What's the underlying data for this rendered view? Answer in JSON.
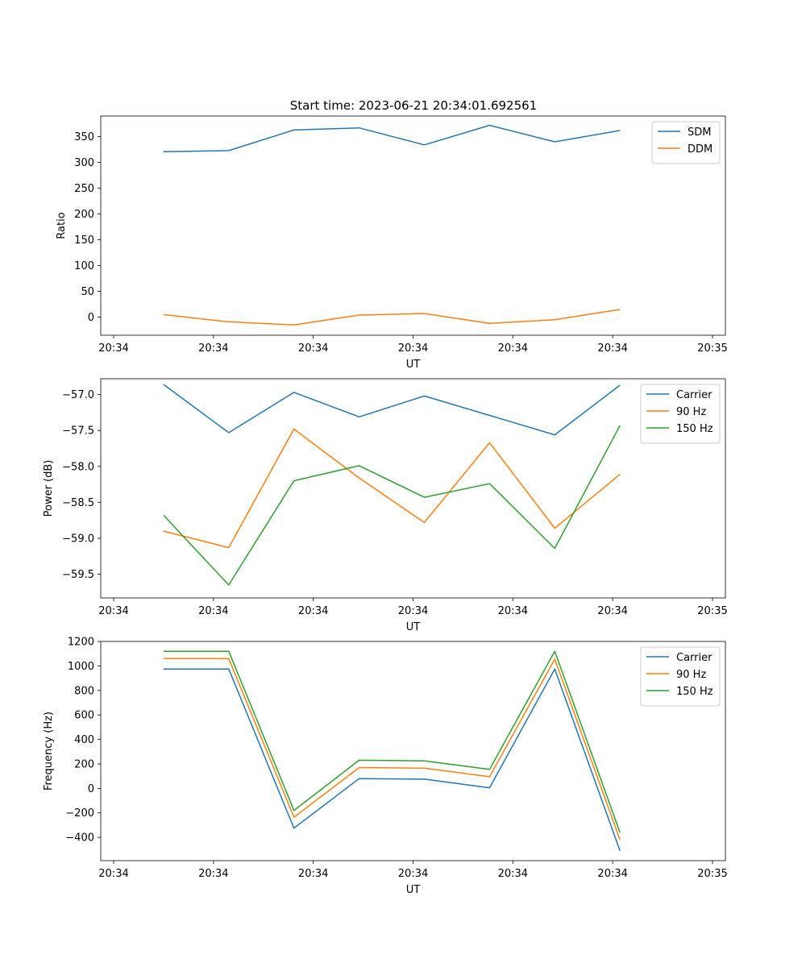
{
  "figure": {
    "title": "Start time: 2023-06-21 20:34:01.692561"
  },
  "chart_data": [
    {
      "type": "line",
      "title": "Start time: 2023-06-21 20:34:01.692561",
      "xlabel": "UT",
      "ylabel": "Ratio",
      "xlim": [
        0,
        9
      ],
      "ylim": [
        -35,
        390
      ],
      "x_ticks": [
        {
          "pos": 0,
          "label": "20:34"
        },
        {
          "pos": 1.5,
          "label": "20:34"
        },
        {
          "pos": 3,
          "label": "20:34"
        },
        {
          "pos": 4.5,
          "label": "20:34"
        },
        {
          "pos": 6,
          "label": "20:34"
        },
        {
          "pos": 7.5,
          "label": "20:34"
        },
        {
          "pos": 9,
          "label": "20:35"
        }
      ],
      "y_ticks": [
        0,
        50,
        100,
        150,
        200,
        250,
        300,
        350
      ],
      "legend": "top-right",
      "grid": false,
      "series": [
        {
          "name": "SDM",
          "color": "#1f77b4",
          "x": [
            0.75,
            1.73,
            2.71,
            3.69,
            4.67,
            5.65,
            6.63,
            7.61
          ],
          "values": [
            321,
            323,
            363,
            367,
            334,
            372,
            340,
            362
          ]
        },
        {
          "name": "DDM",
          "color": "#ff7f0e",
          "x": [
            0.75,
            1.73,
            2.71,
            3.69,
            4.67,
            5.65,
            6.63,
            7.61
          ],
          "values": [
            5,
            -9,
            -15,
            4,
            7,
            -12,
            -5,
            15
          ]
        }
      ]
    },
    {
      "type": "line",
      "title": "",
      "xlabel": "UT",
      "ylabel": "Power (dB)",
      "xlim": [
        0,
        9
      ],
      "ylim": [
        -59.83,
        -56.78
      ],
      "x_ticks": [
        {
          "pos": 0,
          "label": "20:34"
        },
        {
          "pos": 1.5,
          "label": "20:34"
        },
        {
          "pos": 3,
          "label": "20:34"
        },
        {
          "pos": 4.5,
          "label": "20:34"
        },
        {
          "pos": 6,
          "label": "20:34"
        },
        {
          "pos": 7.5,
          "label": "20:34"
        },
        {
          "pos": 9,
          "label": "20:35"
        }
      ],
      "y_ticks": [
        -59.5,
        -59.0,
        -58.5,
        -58.0,
        -57.5,
        -57.0
      ],
      "y_tick_labels": [
        "−59.5",
        "−59.0",
        "−58.5",
        "−58.0",
        "−57.5",
        "−57.0"
      ],
      "legend": "top-right",
      "grid": false,
      "series": [
        {
          "name": "Carrier",
          "color": "#1f77b4",
          "x": [
            0.75,
            1.73,
            2.71,
            3.69,
            4.67,
            5.65,
            6.63,
            7.61
          ],
          "values": [
            -56.86,
            -57.53,
            -56.97,
            -57.31,
            -57.02,
            -57.29,
            -57.56,
            -56.87
          ]
        },
        {
          "name": "90 Hz",
          "color": "#ff7f0e",
          "x": [
            0.75,
            1.73,
            2.71,
            3.69,
            4.67,
            5.65,
            6.63,
            7.61
          ],
          "values": [
            -58.9,
            -59.13,
            -57.48,
            -58.16,
            -58.78,
            -57.67,
            -58.86,
            -58.11
          ]
        },
        {
          "name": "150 Hz",
          "color": "#2ca02c",
          "x": [
            0.75,
            1.73,
            2.71,
            3.69,
            4.67,
            5.65,
            6.63,
            7.61
          ],
          "values": [
            -58.68,
            -59.65,
            -58.2,
            -57.99,
            -58.43,
            -58.24,
            -59.14,
            -57.43
          ]
        }
      ]
    },
    {
      "type": "line",
      "title": "",
      "xlabel": "UT",
      "ylabel": "Frequency (Hz)",
      "xlim": [
        0,
        9
      ],
      "ylim": [
        -590,
        1200
      ],
      "x_ticks": [
        {
          "pos": 0,
          "label": "20:34"
        },
        {
          "pos": 1.5,
          "label": "20:34"
        },
        {
          "pos": 3,
          "label": "20:34"
        },
        {
          "pos": 4.5,
          "label": "20:34"
        },
        {
          "pos": 6,
          "label": "20:34"
        },
        {
          "pos": 7.5,
          "label": "20:34"
        },
        {
          "pos": 9,
          "label": "20:35"
        }
      ],
      "y_ticks": [
        -400,
        -200,
        0,
        200,
        400,
        600,
        800,
        1000,
        1200
      ],
      "y_tick_labels": [
        "−400",
        "−200",
        "0",
        "200",
        "400",
        "600",
        "800",
        "1000",
        "1200"
      ],
      "legend": "top-right",
      "grid": false,
      "series": [
        {
          "name": "Carrier",
          "color": "#1f77b4",
          "x": [
            0.75,
            1.73,
            2.71,
            3.69,
            4.67,
            5.65,
            6.63,
            7.61
          ],
          "values": [
            975,
            975,
            -325,
            80,
            75,
            5,
            975,
            -510
          ]
        },
        {
          "name": "90 Hz",
          "color": "#ff7f0e",
          "x": [
            0.75,
            1.73,
            2.71,
            3.69,
            4.67,
            5.65,
            6.63,
            7.61
          ],
          "values": [
            1060,
            1060,
            -235,
            170,
            165,
            95,
            1055,
            -420
          ]
        },
        {
          "name": "150 Hz",
          "color": "#2ca02c",
          "x": [
            0.75,
            1.73,
            2.71,
            3.69,
            4.67,
            5.65,
            6.63,
            7.61
          ],
          "values": [
            1120,
            1120,
            -180,
            230,
            225,
            155,
            1120,
            -360
          ]
        }
      ]
    }
  ]
}
